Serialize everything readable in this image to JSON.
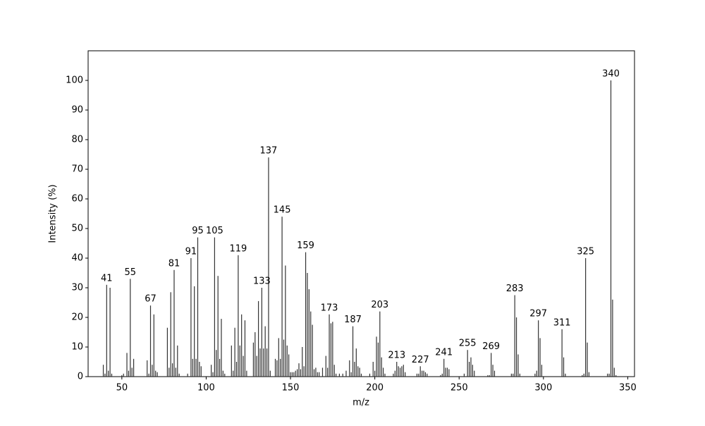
{
  "chart_data": {
    "type": "spectrum",
    "xlabel": "m/z",
    "ylabel": "Intensity (%)",
    "color": "#333333",
    "xlim": [
      30,
      354
    ],
    "ylim": [
      0,
      110
    ],
    "xticks": [
      50,
      100,
      150,
      200,
      250,
      300,
      350
    ],
    "yticks": [
      0,
      10,
      20,
      30,
      40,
      50,
      60,
      70,
      80,
      90,
      100
    ],
    "x": [
      39,
      40,
      41,
      42,
      43,
      44,
      50,
      51,
      53,
      54,
      55,
      56,
      57,
      65,
      66,
      67,
      68,
      69,
      70,
      71,
      77,
      78,
      79,
      80,
      81,
      82,
      83,
      84,
      89,
      91,
      92,
      93,
      94,
      95,
      96,
      97,
      103,
      104,
      105,
      106,
      107,
      108,
      109,
      110,
      111,
      115,
      116,
      117,
      118,
      119,
      120,
      121,
      122,
      123,
      124,
      128,
      129,
      130,
      131,
      132,
      133,
      134,
      135,
      136,
      137,
      138,
      141,
      142,
      143,
      144,
      145,
      146,
      147,
      148,
      149,
      150,
      151,
      152,
      153,
      154,
      155,
      156,
      157,
      158,
      159,
      160,
      161,
      162,
      163,
      164,
      165,
      166,
      167,
      169,
      171,
      172,
      173,
      174,
      175,
      176,
      177,
      179,
      181,
      183,
      185,
      186,
      187,
      188,
      189,
      190,
      191,
      192,
      197,
      199,
      200,
      201,
      202,
      203,
      204,
      205,
      206,
      211,
      212,
      213,
      214,
      215,
      216,
      217,
      218,
      225,
      226,
      227,
      228,
      229,
      230,
      231,
      239,
      240,
      241,
      242,
      243,
      244,
      253,
      255,
      256,
      257,
      258,
      259,
      267,
      268,
      269,
      270,
      271,
      281,
      282,
      283,
      284,
      285,
      286,
      295,
      296,
      297,
      298,
      299,
      311,
      312,
      313,
      323,
      324,
      325,
      326,
      327,
      338,
      339,
      340,
      341,
      342,
      343
    ],
    "values": [
      4,
      1,
      31,
      2,
      30,
      1,
      0.5,
      1,
      8,
      2,
      33,
      3,
      6,
      5.5,
      1,
      24,
      4,
      21,
      2,
      1.5,
      16.5,
      3,
      28.5,
      4.5,
      36,
      3,
      10.5,
      1,
      1,
      40,
      6,
      30.5,
      6,
      47,
      5,
      3.5,
      4,
      1.5,
      47,
      9,
      34,
      6,
      19.5,
      2,
      1,
      10.5,
      2,
      16.5,
      5,
      41,
      10.5,
      21,
      7,
      19,
      2,
      11.5,
      15,
      7,
      25.5,
      9.5,
      30,
      9.5,
      17,
      9.5,
      74,
      2,
      6,
      5.5,
      13,
      6,
      54,
      12.5,
      37.5,
      10.5,
      7.5,
      1.5,
      1.5,
      1.5,
      2,
      2.5,
      4.5,
      2.5,
      10,
      3.5,
      42,
      35,
      29.5,
      22,
      17.5,
      2.5,
      3,
      1.5,
      1.5,
      3,
      7,
      3,
      21,
      18,
      18.5,
      4,
      1,
      1,
      1,
      2,
      5.5,
      1.5,
      17,
      5,
      9.5,
      3.5,
      3,
      1,
      1,
      5,
      2,
      13.5,
      11.5,
      22,
      6.5,
      3,
      1,
      1,
      2,
      5,
      3.5,
      3,
      3.5,
      4,
      1.5,
      1,
      1,
      3.5,
      2,
      2,
      1.5,
      1,
      0.5,
      1,
      6,
      3,
      3,
      2.5,
      1,
      9,
      5,
      6.5,
      4,
      2,
      0.5,
      0.5,
      8,
      4,
      2,
      1,
      1,
      27.5,
      20,
      7.5,
      1,
      1,
      2,
      19,
      13,
      4,
      16,
      6.5,
      1,
      0.5,
      1,
      40,
      11.5,
      1.5,
      1,
      1,
      100,
      26,
      3,
      0.5
    ],
    "peak_labels": [
      41,
      55,
      67,
      81,
      91,
      95,
      105,
      119,
      133,
      137,
      145,
      159,
      173,
      187,
      203,
      213,
      227,
      241,
      255,
      269,
      283,
      297,
      311,
      325,
      340
    ]
  }
}
